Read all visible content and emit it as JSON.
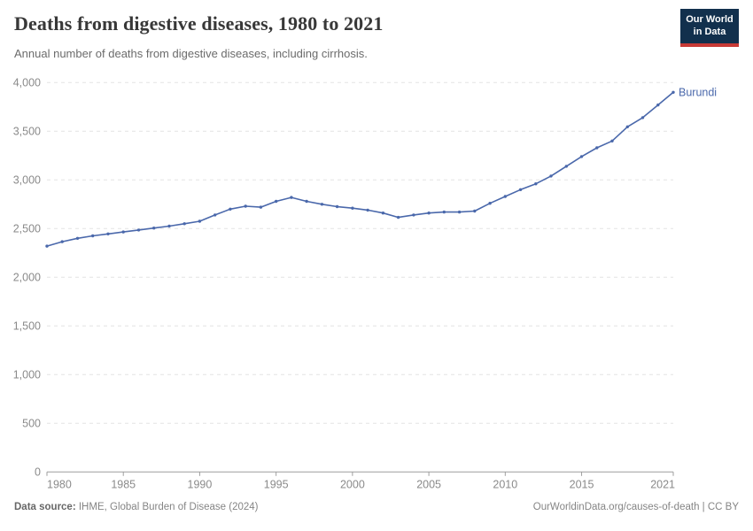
{
  "header": {
    "title": "Deaths from digestive diseases, 1980 to 2021",
    "subtitle": "Annual number of deaths from digestive diseases, including cirrhosis."
  },
  "logo": {
    "line1": "Our World",
    "line2": "in Data",
    "bg_color": "#12304d",
    "accent_color": "#c73a36"
  },
  "chart_data": {
    "type": "line",
    "title": "Deaths from digestive diseases, 1980 to 2021",
    "entity_label": "Burundi",
    "x": [
      1980,
      1981,
      1982,
      1983,
      1984,
      1985,
      1986,
      1987,
      1988,
      1989,
      1990,
      1991,
      1992,
      1993,
      1994,
      1995,
      1996,
      1997,
      1998,
      1999,
      2000,
      2001,
      2002,
      2003,
      2004,
      2005,
      2006,
      2007,
      2008,
      2009,
      2010,
      2011,
      2012,
      2013,
      2014,
      2015,
      2016,
      2017,
      2018,
      2019,
      2020,
      2021
    ],
    "series": [
      {
        "name": "Burundi",
        "values": [
          2320,
          2365,
          2400,
          2425,
          2445,
          2465,
          2485,
          2505,
          2525,
          2550,
          2575,
          2640,
          2700,
          2730,
          2720,
          2780,
          2820,
          2780,
          2750,
          2725,
          2710,
          2690,
          2660,
          2615,
          2640,
          2660,
          2670,
          2670,
          2680,
          2760,
          2830,
          2900,
          2960,
          3040,
          3140,
          3240,
          3330,
          3400,
          3545,
          3640,
          3770,
          3900
        ]
      }
    ],
    "xlabel": "",
    "ylabel": "",
    "ylim": [
      0,
      4000
    ],
    "yticks": [
      0,
      500,
      1000,
      1500,
      2000,
      2500,
      3000,
      3500,
      4000
    ],
    "ytick_labels": [
      "0",
      "500",
      "1,000",
      "1,500",
      "2,000",
      "2,500",
      "3,000",
      "3,500",
      "4,000"
    ],
    "xticks": [
      1980,
      1985,
      1990,
      1995,
      2000,
      2005,
      2010,
      2015,
      2021
    ],
    "xtick_labels": [
      "1980",
      "1985",
      "1990",
      "1995",
      "2000",
      "2005",
      "2010",
      "2015",
      "2021"
    ],
    "grid": "horizontal-dashed",
    "legend_position": "end-of-line-label",
    "line_color": "#4a68ab",
    "grid_color": "#e3e3e3",
    "axis_color": "#9e9e9e",
    "tick_label_color": "#8a8a8a"
  },
  "footer": {
    "source_label": "Data source:",
    "source_text": " IHME, Global Burden of Disease (2024)",
    "link_text": "OurWorldinData.org/causes-of-death | CC BY"
  }
}
